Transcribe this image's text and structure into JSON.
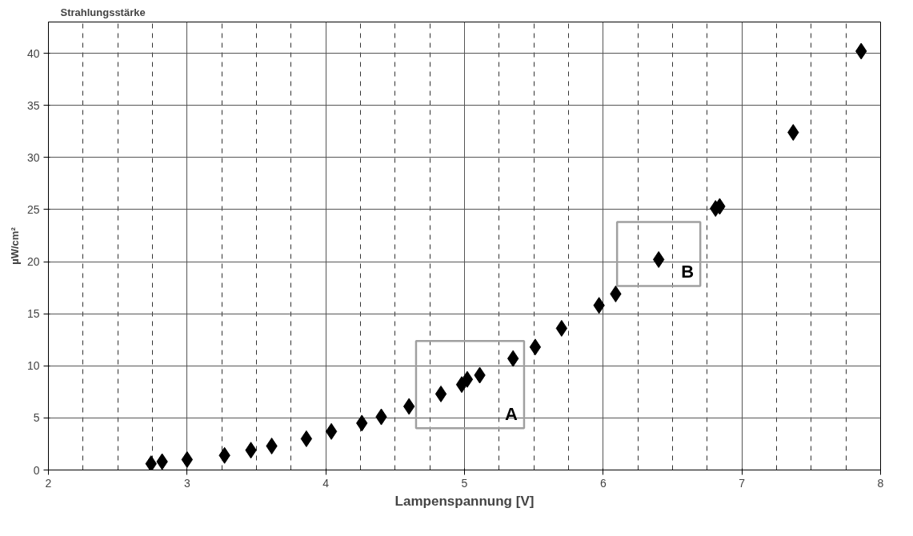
{
  "chart_data": {
    "type": "scatter",
    "title": "Strahlungsstärke",
    "xlabel": "Lampenspannung [V]",
    "ylabel": "µW/cm²",
    "x": [
      2.74,
      2.82,
      3.0,
      3.27,
      3.46,
      3.61,
      3.86,
      4.04,
      4.26,
      4.4,
      4.6,
      4.83,
      4.98,
      5.02,
      5.11,
      5.35,
      5.51,
      5.7,
      5.97,
      6.09,
      6.4,
      6.81,
      6.84,
      7.37,
      7.86
    ],
    "values": [
      0.6,
      0.8,
      1.0,
      1.4,
      1.9,
      2.3,
      3.0,
      3.7,
      4.5,
      5.1,
      6.1,
      7.3,
      8.2,
      8.7,
      9.1,
      10.7,
      11.8,
      13.6,
      15.8,
      16.9,
      20.2,
      25.1,
      25.3,
      32.4,
      40.2
    ],
    "color": "#000000",
    "marker": "diamond",
    "xlim": [
      2,
      8
    ],
    "ylim": [
      0,
      43
    ],
    "xticks": [
      2,
      3,
      4,
      5,
      6,
      7,
      8
    ],
    "yticks": [
      0,
      5,
      10,
      15,
      20,
      25,
      30,
      35,
      40
    ],
    "grid": true,
    "annotations": [
      "A",
      "B"
    ]
  }
}
